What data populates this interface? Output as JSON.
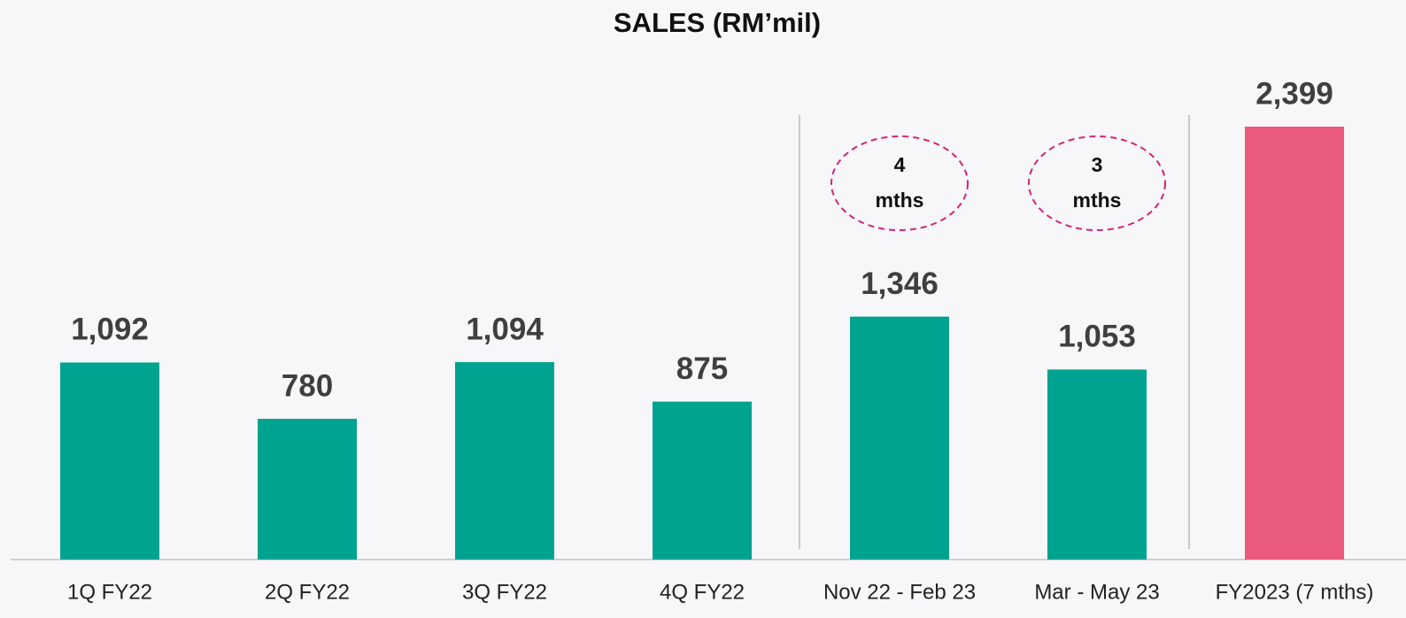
{
  "chart_data": {
    "type": "bar",
    "title": "SALES (RM’mil)",
    "categories": [
      "1Q FY22",
      "2Q FY22",
      "3Q FY22",
      "4Q FY22",
      "Nov 22 - Feb 23",
      "Mar - May 23",
      "FY2023 (7 mths)"
    ],
    "values": [
      1092,
      780,
      1094,
      875,
      1346,
      1053,
      2399
    ],
    "value_labels": [
      "1,092",
      "780",
      "1,094",
      "875",
      "1,346",
      "1,053",
      "2,399"
    ],
    "colors": [
      "#00a390",
      "#00a390",
      "#00a390",
      "#00a390",
      "#00a390",
      "#00a390",
      "#ea5a7f"
    ],
    "annotations": [
      [
        "4",
        "mths"
      ],
      [
        "3",
        "mths"
      ]
    ]
  }
}
